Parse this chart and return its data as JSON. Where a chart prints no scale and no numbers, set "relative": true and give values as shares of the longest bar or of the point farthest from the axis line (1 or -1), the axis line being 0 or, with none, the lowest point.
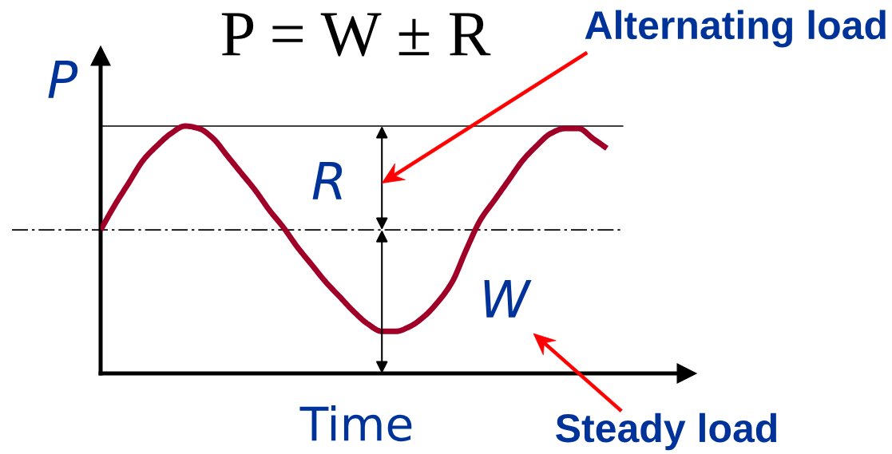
{
  "chart_data": {
    "type": "line",
    "title": "P = W ± R",
    "xlabel": "Time",
    "ylabel": "P",
    "relative": true,
    "line_style": "solid",
    "categories": [
      null,
      null,
      null,
      null,
      null,
      null,
      null,
      null,
      null,
      null,
      null,
      null,
      null,
      null,
      null,
      null,
      null,
      null,
      null,
      null,
      null,
      null,
      null,
      null,
      null,
      null,
      null,
      null,
      null,
      null,
      null,
      null,
      null,
      null,
      null,
      null,
      null
    ],
    "series": [
      {
        "color": "#a00028",
        "values": [
          0.58,
          0.68,
          0.77,
          0.86,
          0.92,
          0.97,
          1.0,
          0.99,
          0.95,
          0.88,
          0.81,
          0.74,
          0.66,
          0.59,
          0.51,
          0.44,
          0.37,
          0.31,
          0.25,
          0.2,
          0.17,
          0.17,
          0.19,
          0.23,
          0.29,
          0.37,
          0.5,
          0.62,
          0.7,
          0.78,
          0.86,
          0.92,
          0.97,
          0.99,
          0.99,
          0.95,
          0.91
        ]
      }
    ],
    "ref_lines": [
      {
        "axis": "y",
        "value": 1,
        "color": "#000000",
        "line_style": "solid"
      },
      {
        "axis": "y",
        "value": 0.58,
        "color": "#000000",
        "line_style": "dashdot"
      }
    ],
    "annotations": [
      "R",
      "W",
      "Alternating load",
      "Steady load"
    ]
  }
}
